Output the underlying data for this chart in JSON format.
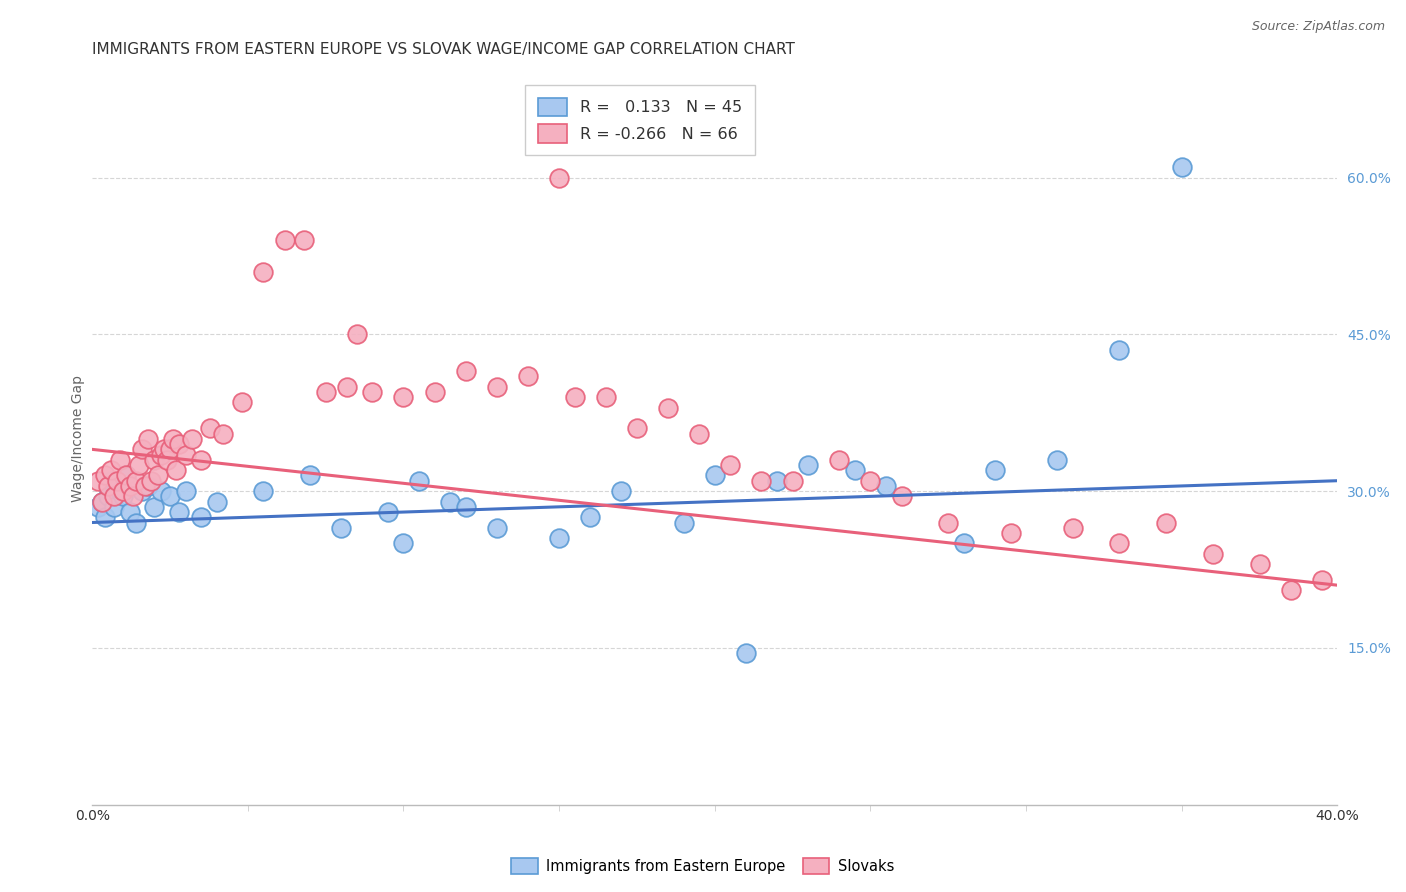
{
  "title": "IMMIGRANTS FROM EASTERN EUROPE VS SLOVAK WAGE/INCOME GAP CORRELATION CHART",
  "source": "Source: ZipAtlas.com",
  "ylabel": "Wage/Income Gap",
  "xlim": [
    0.0,
    0.4
  ],
  "ylim": [
    0.0,
    0.7
  ],
  "yticks": [
    0.15,
    0.3,
    0.45,
    0.6
  ],
  "ytick_labels": [
    "15.0%",
    "30.0%",
    "45.0%",
    "60.0%"
  ],
  "xticks": [
    0.0,
    0.4
  ],
  "xtick_labels": [
    "0.0%",
    "40.0%"
  ],
  "R_blue": 0.133,
  "N_blue": 45,
  "R_pink": -0.266,
  "N_pink": 66,
  "blue_color": "#A8C8F0",
  "pink_color": "#F5B0C0",
  "blue_edge_color": "#5B9BD5",
  "pink_edge_color": "#E8607A",
  "blue_line_color": "#4472C4",
  "pink_line_color": "#E8607A",
  "legend_label_blue": "Immigrants from Eastern Europe",
  "legend_label_pink": "Slovaks",
  "background_color": "#FFFFFF",
  "grid_color": "#CCCCCC",
  "title_fontsize": 11,
  "axis_label_fontsize": 10,
  "tick_fontsize": 10,
  "blue_scatter_x": [
    0.002,
    0.003,
    0.004,
    0.005,
    0.006,
    0.007,
    0.008,
    0.009,
    0.01,
    0.011,
    0.012,
    0.014,
    0.016,
    0.018,
    0.02,
    0.022,
    0.025,
    0.028,
    0.03,
    0.035,
    0.04,
    0.055,
    0.07,
    0.08,
    0.095,
    0.1,
    0.105,
    0.115,
    0.12,
    0.13,
    0.15,
    0.16,
    0.17,
    0.19,
    0.2,
    0.21,
    0.22,
    0.23,
    0.245,
    0.255,
    0.28,
    0.29,
    0.31,
    0.33,
    0.35
  ],
  "blue_scatter_y": [
    0.285,
    0.29,
    0.275,
    0.295,
    0.31,
    0.285,
    0.305,
    0.3,
    0.295,
    0.315,
    0.28,
    0.27,
    0.3,
    0.305,
    0.285,
    0.3,
    0.295,
    0.28,
    0.3,
    0.275,
    0.29,
    0.3,
    0.315,
    0.265,
    0.28,
    0.25,
    0.31,
    0.29,
    0.285,
    0.265,
    0.255,
    0.275,
    0.3,
    0.27,
    0.315,
    0.145,
    0.31,
    0.325,
    0.32,
    0.305,
    0.25,
    0.32,
    0.33,
    0.435,
    0.61
  ],
  "pink_scatter_x": [
    0.002,
    0.003,
    0.004,
    0.005,
    0.006,
    0.007,
    0.008,
    0.009,
    0.01,
    0.011,
    0.012,
    0.013,
    0.014,
    0.015,
    0.016,
    0.017,
    0.018,
    0.019,
    0.02,
    0.021,
    0.022,
    0.023,
    0.024,
    0.025,
    0.026,
    0.027,
    0.028,
    0.03,
    0.032,
    0.035,
    0.038,
    0.042,
    0.048,
    0.055,
    0.062,
    0.068,
    0.075,
    0.082,
    0.09,
    0.1,
    0.11,
    0.12,
    0.13,
    0.14,
    0.155,
    0.165,
    0.175,
    0.185,
    0.195,
    0.205,
    0.215,
    0.225,
    0.24,
    0.25,
    0.26,
    0.275,
    0.295,
    0.315,
    0.33,
    0.345,
    0.36,
    0.375,
    0.385,
    0.395,
    0.085,
    0.15
  ],
  "pink_scatter_y": [
    0.31,
    0.29,
    0.315,
    0.305,
    0.32,
    0.295,
    0.31,
    0.33,
    0.3,
    0.315,
    0.305,
    0.295,
    0.31,
    0.325,
    0.34,
    0.305,
    0.35,
    0.31,
    0.33,
    0.315,
    0.335,
    0.34,
    0.33,
    0.34,
    0.35,
    0.32,
    0.345,
    0.335,
    0.35,
    0.33,
    0.36,
    0.355,
    0.385,
    0.51,
    0.54,
    0.54,
    0.395,
    0.4,
    0.395,
    0.39,
    0.395,
    0.415,
    0.4,
    0.41,
    0.39,
    0.39,
    0.36,
    0.38,
    0.355,
    0.325,
    0.31,
    0.31,
    0.33,
    0.31,
    0.295,
    0.27,
    0.26,
    0.265,
    0.25,
    0.27,
    0.24,
    0.23,
    0.205,
    0.215,
    0.45,
    0.6
  ]
}
